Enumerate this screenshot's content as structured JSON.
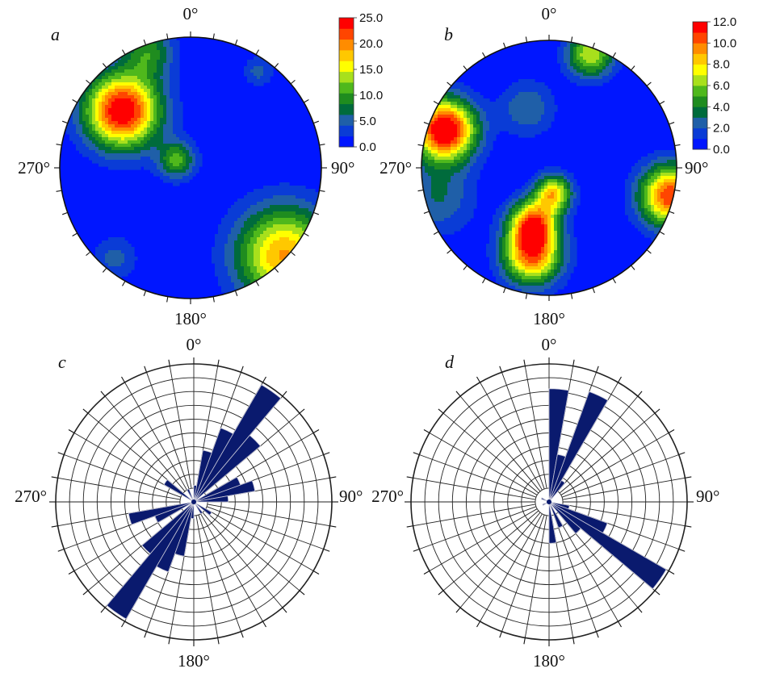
{
  "panels": [
    {
      "id": "a",
      "letter": "a",
      "type": "contour",
      "labels": {
        "n": "0°",
        "e": "90°",
        "s": "180°",
        "w": "270°"
      },
      "colorbar": {
        "ticks": [
          "25.0",
          "20.0",
          "15.0",
          "10.0",
          "5.0",
          "0.0"
        ]
      },
      "blobs": [
        {
          "azimuth": 310,
          "dist": 0.68,
          "sigma": 0.2,
          "peak": 26
        },
        {
          "azimuth": 340,
          "dist": 0.95,
          "sigma": 0.14,
          "peak": 9
        },
        {
          "azimuth": 300,
          "dist": 0.12,
          "sigma": 0.1,
          "peak": 11
        },
        {
          "azimuth": 133,
          "dist": 0.98,
          "sigma": 0.26,
          "peak": 19
        },
        {
          "azimuth": 35,
          "dist": 0.9,
          "sigma": 0.08,
          "peak": 5
        },
        {
          "azimuth": 220,
          "dist": 0.9,
          "sigma": 0.12,
          "peak": 5
        }
      ]
    },
    {
      "id": "b",
      "letter": "b",
      "type": "contour",
      "labels": {
        "n": "0°",
        "e": "90°",
        "s": "180°",
        "w": "270°"
      },
      "colorbar": {
        "ticks": [
          "12.0",
          "10.0",
          "8.0",
          "6.0",
          "4.0",
          "2.0",
          "0.0"
        ]
      },
      "blobs": [
        {
          "azimuth": 290,
          "dist": 0.87,
          "sigma": 0.17,
          "peak": 13
        },
        {
          "azimuth": 20,
          "dist": 0.95,
          "sigma": 0.13,
          "peak": 7
        },
        {
          "azimuth": 196,
          "dist": 0.45,
          "sigma": 0.13,
          "peak": 9.5
        },
        {
          "azimuth": 191,
          "dist": 0.7,
          "sigma": 0.16,
          "peak": 10
        },
        {
          "azimuth": 170,
          "dist": 0.2,
          "sigma": 0.1,
          "peak": 8
        },
        {
          "azimuth": 103,
          "dist": 0.98,
          "sigma": 0.17,
          "peak": 11
        },
        {
          "azimuth": 340,
          "dist": 0.5,
          "sigma": 0.15,
          "peak": 3
        },
        {
          "azimuth": 255,
          "dist": 0.9,
          "sigma": 0.2,
          "peak": 3
        }
      ]
    },
    {
      "id": "c",
      "letter": "c",
      "type": "rose",
      "labels": {
        "n": "0°",
        "e": "90°",
        "s": "180°",
        "w": "270°"
      },
      "sectors": [
        {
          "from": 30,
          "to": 40,
          "length": 0.98
        },
        {
          "from": 40,
          "to": 50,
          "length": 0.63
        },
        {
          "from": 20,
          "to": 30,
          "length": 0.57
        },
        {
          "from": 70,
          "to": 80,
          "length": 0.45
        },
        {
          "from": 60,
          "to": 70,
          "length": 0.36
        },
        {
          "from": 80,
          "to": 90,
          "length": 0.25
        },
        {
          "from": 10,
          "to": 20,
          "length": 0.38
        },
        {
          "from": 0,
          "to": 10,
          "length": 0.12
        },
        {
          "from": 200,
          "to": 210,
          "length": 0.54
        },
        {
          "from": 210,
          "to": 220,
          "length": 0.98
        },
        {
          "from": 220,
          "to": 230,
          "length": 0.49
        },
        {
          "from": 250,
          "to": 260,
          "length": 0.48
        },
        {
          "from": 240,
          "to": 250,
          "length": 0.3
        },
        {
          "from": 190,
          "to": 200,
          "length": 0.4
        },
        {
          "from": 180,
          "to": 190,
          "length": 0.12
        },
        {
          "from": 300,
          "to": 310,
          "length": 0.25
        },
        {
          "from": 330,
          "to": 340,
          "length": 0.1
        },
        {
          "from": 120,
          "to": 130,
          "length": 0.15
        },
        {
          "from": 140,
          "to": 150,
          "length": 0.1
        }
      ]
    },
    {
      "id": "d",
      "letter": "d",
      "type": "rose",
      "labels": {
        "n": "0°",
        "e": "90°",
        "s": "180°",
        "w": "270°"
      },
      "sectors": [
        {
          "from": 0,
          "to": 10,
          "length": 0.82
        },
        {
          "from": 20,
          "to": 30,
          "length": 0.85
        },
        {
          "from": 10,
          "to": 20,
          "length": 0.35
        },
        {
          "from": 30,
          "to": 40,
          "length": 0.18
        },
        {
          "from": 120,
          "to": 130,
          "length": 0.98
        },
        {
          "from": 110,
          "to": 120,
          "length": 0.45
        },
        {
          "from": 130,
          "to": 140,
          "length": 0.3
        },
        {
          "from": 100,
          "to": 110,
          "length": 0.15
        },
        {
          "from": 150,
          "to": 160,
          "length": 0.2
        },
        {
          "from": 170,
          "to": 180,
          "length": 0.3
        },
        {
          "from": 290,
          "to": 300,
          "length": 0.06
        },
        {
          "from": 240,
          "to": 250,
          "length": 0.05
        }
      ]
    }
  ],
  "chart_data": [
    {
      "type": "heatmap",
      "panel": "a",
      "title": "",
      "directions": [
        "0°",
        "90°",
        "180°",
        "270°"
      ],
      "colorbar_range": [
        0,
        25
      ],
      "colorbar_ticks": [
        0,
        5,
        10,
        15,
        20,
        25
      ],
      "maxima": [
        {
          "azimuth_deg": 310,
          "value": 25
        },
        {
          "azimuth_deg": 133,
          "value": 18
        },
        {
          "azimuth_deg": 300,
          "value": 10
        }
      ]
    },
    {
      "type": "heatmap",
      "panel": "b",
      "title": "",
      "directions": [
        "0°",
        "90°",
        "180°",
        "270°"
      ],
      "colorbar_range": [
        0,
        12
      ],
      "colorbar_ticks": [
        0,
        2,
        4,
        6,
        8,
        10,
        12
      ],
      "maxima": [
        {
          "azimuth_deg": 290,
          "value": 12
        },
        {
          "azimuth_deg": 193,
          "value": 10
        },
        {
          "azimuth_deg": 103,
          "value": 10
        },
        {
          "azimuth_deg": 20,
          "value": 6
        }
      ]
    },
    {
      "type": "bar",
      "subtype": "rose",
      "panel": "c",
      "title": "",
      "directions": [
        "0°",
        "90°",
        "180°",
        "270°"
      ],
      "sector_width_deg": 10,
      "sector_start_deg": [
        0,
        10,
        20,
        30,
        40,
        60,
        70,
        80,
        120,
        140,
        180,
        190,
        200,
        210,
        220,
        240,
        250,
        300,
        330
      ],
      "relative_length": [
        0.12,
        0.38,
        0.57,
        0.98,
        0.63,
        0.36,
        0.45,
        0.25,
        0.15,
        0.1,
        0.12,
        0.4,
        0.54,
        0.98,
        0.49,
        0.3,
        0.48,
        0.25,
        0.1
      ]
    },
    {
      "type": "bar",
      "subtype": "rose",
      "panel": "d",
      "title": "",
      "directions": [
        "0°",
        "90°",
        "180°",
        "270°"
      ],
      "sector_width_deg": 10,
      "sector_start_deg": [
        0,
        10,
        20,
        30,
        100,
        110,
        120,
        130,
        150,
        170,
        240,
        290
      ],
      "relative_length": [
        0.82,
        0.35,
        0.85,
        0.18,
        0.15,
        0.45,
        0.98,
        0.3,
        0.2,
        0.3,
        0.05,
        0.06
      ]
    }
  ]
}
